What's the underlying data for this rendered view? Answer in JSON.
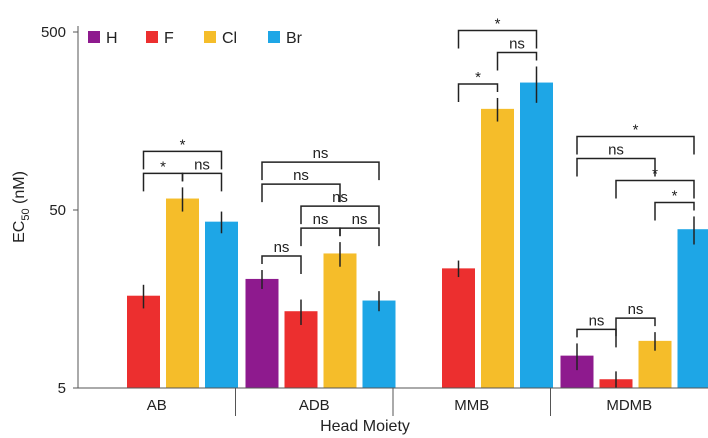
{
  "chart_data": {
    "type": "bar",
    "xlabel": "Head Moiety",
    "ylabel": "EC",
    "ylabel_sub": "50",
    "ylabel_unit": " (nM)",
    "yscale": "log",
    "ylim": [
      5,
      500
    ],
    "yticks": [
      5,
      50,
      500
    ],
    "ytick_labels": [
      "5",
      "50",
      "500"
    ],
    "grid": false,
    "legend_position": "top-left",
    "categories": [
      "AB",
      "ADB",
      "MMB",
      "MDMB"
    ],
    "series": [
      {
        "name": "H",
        "color": "#8e1a8e",
        "values": [
          null,
          20.5,
          null,
          7.6
        ],
        "err": [
          null,
          2.5,
          null,
          1.3
        ]
      },
      {
        "name": "F",
        "color": "#ec2f2f",
        "values": [
          16.5,
          13.5,
          23.5,
          5.6
        ],
        "err": [
          2.5,
          2.2,
          2.5,
          0.6
        ]
      },
      {
        "name": "Cl",
        "color": "#f5bd2a",
        "values": [
          58,
          28.5,
          185,
          9.2
        ],
        "err": [
          9,
          4.5,
          28,
          1.1
        ]
      },
      {
        "name": "Br",
        "color": "#1ea6e6",
        "values": [
          43,
          15.5,
          260,
          39
        ],
        "err": [
          6,
          2.0,
          60,
          7
        ]
      }
    ],
    "comparisons": [
      {
        "category": 0,
        "from": 1,
        "to": 2,
        "label": "*",
        "level": 1
      },
      {
        "category": 0,
        "from": 2,
        "to": 3,
        "label": "ns",
        "level": 1
      },
      {
        "category": 0,
        "from": 1,
        "to": 3,
        "label": "*",
        "level": 2
      },
      {
        "category": 1,
        "from": 0,
        "to": 1,
        "label": "ns",
        "level": 1
      },
      {
        "category": 1,
        "from": 1,
        "to": 2,
        "label": "ns",
        "level": 1
      },
      {
        "category": 1,
        "from": 2,
        "to": 3,
        "label": "ns",
        "level": 1
      },
      {
        "category": 1,
        "from": 1,
        "to": 3,
        "label": "ns",
        "level": 2
      },
      {
        "category": 1,
        "from": 0,
        "to": 2,
        "label": "ns",
        "level": 3
      },
      {
        "category": 1,
        "from": 0,
        "to": 3,
        "label": "ns",
        "level": 4
      },
      {
        "category": 2,
        "from": 1,
        "to": 2,
        "label": "*",
        "level": 1
      },
      {
        "category": 2,
        "from": 2,
        "to": 3,
        "label": "ns",
        "level": 1
      },
      {
        "category": 2,
        "from": 1,
        "to": 3,
        "label": "*",
        "level": 2
      },
      {
        "category": 3,
        "from": 0,
        "to": 1,
        "label": "ns",
        "level": 1
      },
      {
        "category": 3,
        "from": 1,
        "to": 2,
        "label": "ns",
        "level": 1
      },
      {
        "category": 3,
        "from": 2,
        "to": 3,
        "label": "*",
        "level": 1
      },
      {
        "category": 3,
        "from": 1,
        "to": 3,
        "label": "*",
        "level": 2
      },
      {
        "category": 3,
        "from": 0,
        "to": 2,
        "label": "ns",
        "level": 3
      },
      {
        "category": 3,
        "from": 0,
        "to": 3,
        "label": "*",
        "level": 4
      }
    ]
  }
}
